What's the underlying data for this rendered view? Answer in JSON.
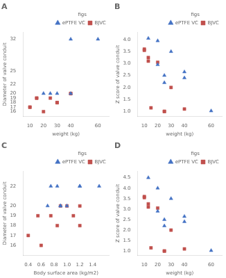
{
  "chart_data": [
    {
      "type": "scatter",
      "title": "A",
      "x_label": "weight (kg)",
      "y_label": "Diameter of valve conduit",
      "xlim": [
        5,
        68
      ],
      "ylim": [
        15.0,
        33.5
      ],
      "xticks": [
        10,
        20,
        30,
        40,
        60
      ],
      "yticks": [
        16,
        17,
        18,
        19,
        20,
        22,
        25,
        32
      ],
      "grid": false,
      "legend": "upper right",
      "legend_title": "figs",
      "series": [
        {
          "name": "ePTFE VC",
          "color": "#4472C4",
          "marker": "triangle",
          "x": [
            20,
            25,
            30,
            40,
            40,
            60
          ],
          "values": [
            20,
            20,
            20,
            32,
            20,
            32
          ]
        },
        {
          "name": "BJVC",
          "color": "#C0504D",
          "marker": "square",
          "x": [
            10,
            10,
            15,
            15,
            20,
            25,
            30,
            30,
            40,
            40
          ],
          "values": [
            17,
            17,
            19,
            19,
            16,
            19,
            18,
            18,
            20,
            20
          ]
        }
      ]
    },
    {
      "type": "scatter",
      "title": "B",
      "x_label": "weight (kg)",
      "y_label": "Z score of valve conduit",
      "xlim": [
        5,
        68
      ],
      "ylim": [
        0.8,
        4.3
      ],
      "xticks": [
        10,
        20,
        30,
        40,
        60
      ],
      "yticks": [
        {
          "value": 1.0,
          "label": "1.0"
        },
        1.5,
        {
          "value": 2.0,
          "label": "2.0"
        },
        2.5,
        {
          "value": 3.0,
          "label": "3.0"
        },
        3.5,
        {
          "value": 4.0,
          "label": "4.0"
        }
      ],
      "grid": false,
      "legend": "upper right",
      "legend_title": "figs",
      "series": [
        {
          "name": "ePTFE VC",
          "color": "#4472C4",
          "marker": "triangle",
          "x": [
            13,
            20,
            20,
            25,
            25,
            30,
            40,
            40,
            60
          ],
          "values": [
            4.05,
            3.95,
            2.95,
            2.5,
            2.2,
            3.5,
            2.65,
            2.4,
            1.02
          ]
        },
        {
          "name": "BJVC",
          "color": "#C0504D",
          "marker": "square",
          "x": [
            10,
            10,
            13,
            13,
            15,
            20,
            25,
            25,
            30,
            40
          ],
          "values": [
            3.6,
            3.55,
            3.25,
            3.1,
            1.15,
            3.05,
            1.0,
            1.0,
            2.0,
            1.1
          ]
        }
      ]
    },
    {
      "type": "scatter",
      "title": "C",
      "x_label": "Body surface area (kg/m2)",
      "y_label": "Diameter of valve conduit",
      "xlim": [
        0.32,
        1.65
      ],
      "ylim": [
        15.0,
        23.5
      ],
      "xticks": [
        0.4,
        0.6,
        0.8,
        {
          "value": 1.0,
          "label": "1.0"
        },
        1.2,
        1.4
      ],
      "yticks": [
        16,
        17,
        18,
        19,
        20,
        22
      ],
      "grid": false,
      "legend": "upper right",
      "legend_title": "figs",
      "series": [
        {
          "name": "ePTFE VC",
          "color": "#4472C4",
          "marker": "triangle",
          "x": [
            0.7,
            0.75,
            0.85,
            0.9,
            0.9,
            1.0,
            1.2,
            1.2,
            1.5
          ],
          "values": [
            20,
            22,
            22,
            20,
            20,
            20,
            22,
            22,
            22
          ]
        },
        {
          "name": "BJVC",
          "color": "#C0504D",
          "marker": "square",
          "x": [
            0.4,
            0.55,
            0.6,
            0.75,
            0.85,
            0.9,
            1.0,
            1.1,
            1.2,
            1.2
          ],
          "values": [
            17,
            19,
            16,
            19,
            18,
            20,
            20,
            19,
            18,
            20
          ]
        }
      ]
    },
    {
      "type": "scatter",
      "title": "D",
      "x_label": "weight (kg)",
      "y_label": "Z score of valve conduit",
      "xlim": [
        5,
        68
      ],
      "ylim": [
        0.8,
        4.8
      ],
      "xticks": [
        10,
        20,
        30,
        40,
        60
      ],
      "yticks": [
        {
          "value": 1.0,
          "label": "1.0"
        },
        1.5,
        {
          "value": 2.0,
          "label": "2.0"
        },
        2.5,
        {
          "value": 3.0,
          "label": "3.0"
        },
        3.5,
        {
          "value": 4.0,
          "label": "4.0"
        },
        4.5
      ],
      "grid": false,
      "legend": "upper right",
      "legend_title": "figs",
      "series": [
        {
          "name": "ePTFE VC",
          "color": "#4472C4",
          "marker": "triangle",
          "x": [
            13,
            20,
            20,
            25,
            25,
            30,
            40,
            40,
            60
          ],
          "values": [
            4.5,
            4.0,
            2.9,
            2.5,
            2.2,
            3.5,
            2.65,
            2.4,
            1.02
          ]
        },
        {
          "name": "BJVC",
          "color": "#C0504D",
          "marker": "square",
          "x": [
            10,
            10,
            13,
            13,
            15,
            20,
            25,
            25,
            30,
            40
          ],
          "values": [
            3.6,
            3.55,
            3.25,
            3.1,
            1.15,
            3.05,
            1.0,
            1.0,
            2.0,
            1.1
          ]
        }
      ]
    }
  ]
}
